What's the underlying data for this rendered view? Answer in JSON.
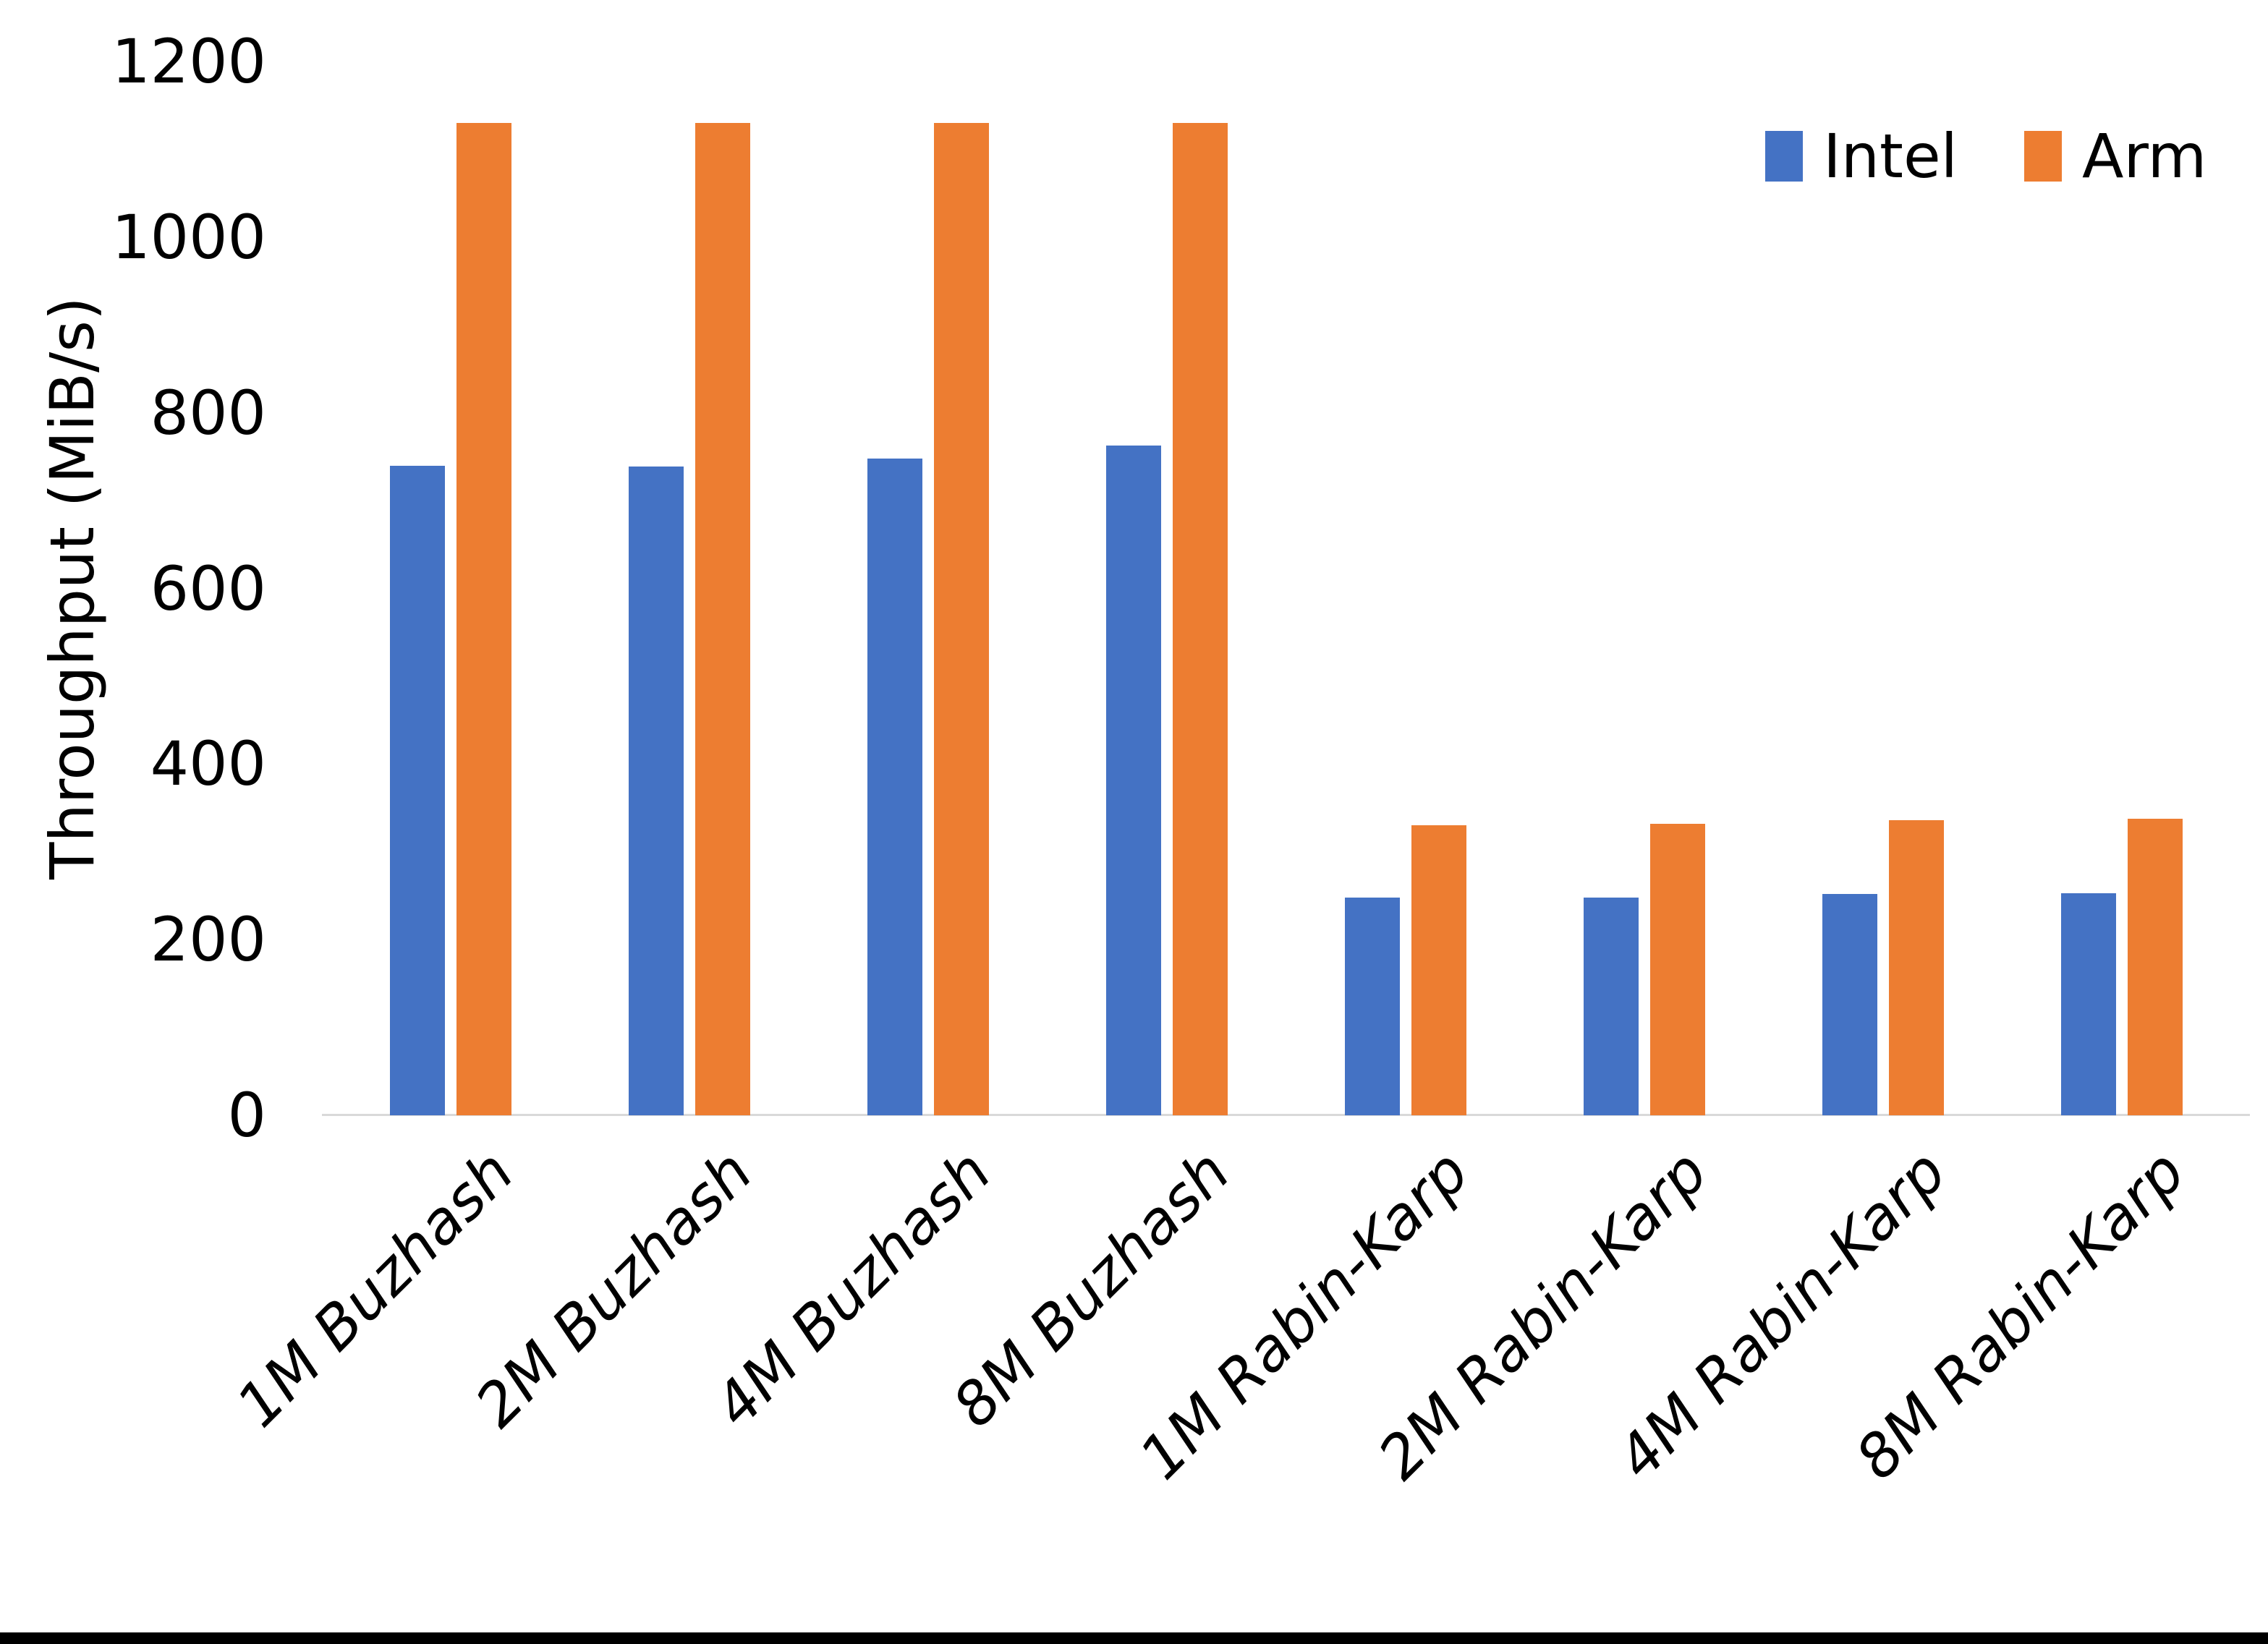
{
  "chart_data": {
    "type": "bar",
    "title": "",
    "ylabel": "Throughput (MiB/s)",
    "xlabel": "",
    "ylim": [
      0,
      1200
    ],
    "yticks": [
      0,
      200,
      400,
      600,
      800,
      1000,
      1200
    ],
    "grid": false,
    "legend_position": "top-right",
    "categories": [
      "1M Buzhash",
      "2M Buzhash",
      "4M Buzhash",
      "8M Buzhash",
      "1M Rabin-Karp",
      "2M Rabin-Karp",
      "4M Rabin-Karp",
      "8M Rabin-Karp"
    ],
    "series": [
      {
        "name": "Intel",
        "color": "#4472C4",
        "values": [
          740,
          739,
          748,
          763,
          248,
          248,
          252,
          253
        ]
      },
      {
        "name": "Arm",
        "color": "#ED7D31",
        "values": [
          1130,
          1130,
          1130,
          1130,
          330,
          332,
          336,
          338
        ]
      }
    ]
  },
  "colors": {
    "background": "#FFFFFF",
    "axis_line": "#D9D9D9",
    "text": "#000000",
    "bottom_border": "#000000"
  }
}
